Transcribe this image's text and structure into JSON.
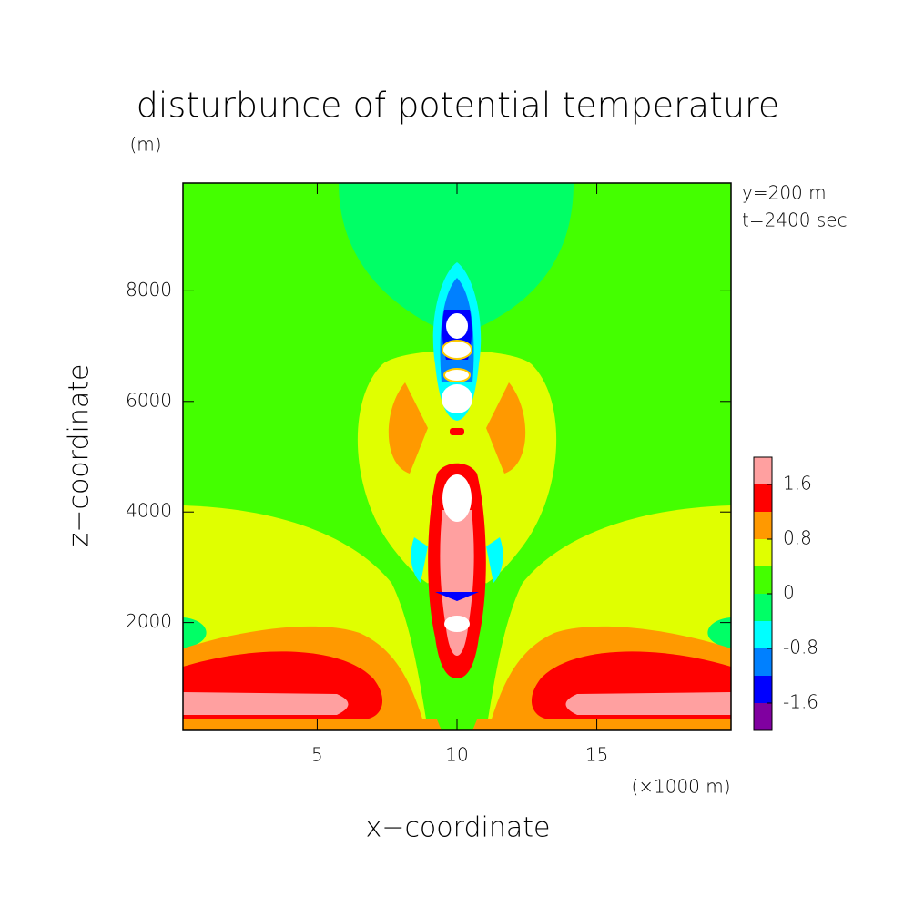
{
  "chart_data": {
    "type": "contour",
    "title": "disturbunce of potential temperature",
    "xlabel": "x−coordinate",
    "ylabel": "z−coordinate",
    "yunit": "(m)",
    "xunit": "(×1000 m)",
    "annotations": [
      "y=200 m",
      "t=2400 sec"
    ],
    "xlim": [
      0.2,
      19.8
    ],
    "xticks": [
      5,
      10,
      15
    ],
    "ylim": [
      50,
      9950
    ],
    "yticks": [
      2000,
      4000,
      6000,
      8000
    ],
    "colorbar": {
      "levels": [
        -1.6,
        -1.2,
        -0.8,
        -0.4,
        0,
        0.4,
        0.8,
        1.2,
        1.6
      ],
      "colors": [
        "#8000a0",
        "#0000ff",
        "#0080ff",
        "#00ffff",
        "#00ff66",
        "#44ff00",
        "#e0ff00",
        "#ff9900",
        "#ff0000",
        "#ffa0a0"
      ],
      "ticks": [
        -1.6,
        -0.8,
        0,
        0.8,
        1.6
      ]
    }
  }
}
